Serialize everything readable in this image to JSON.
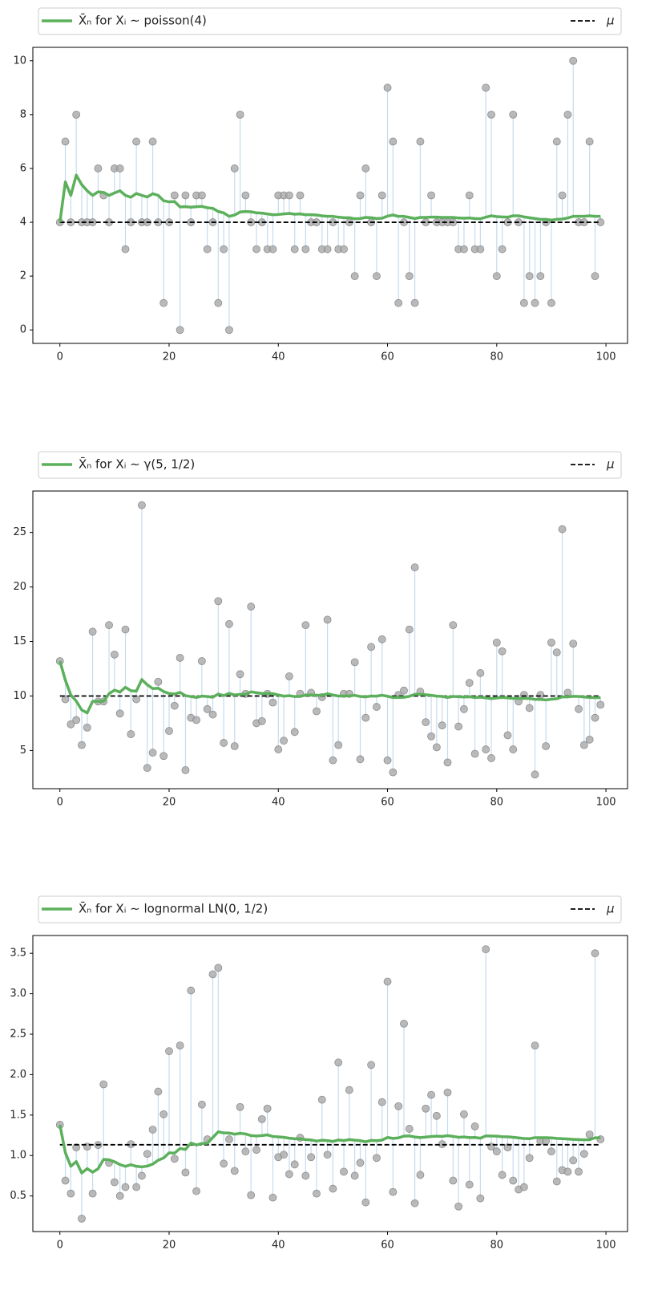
{
  "chart_data": [
    {
      "type": "stem",
      "x": [
        0,
        1,
        2,
        3,
        4,
        5,
        6,
        7,
        8,
        9,
        10,
        11,
        12,
        13,
        14,
        15,
        16,
        17,
        18,
        19,
        20,
        21,
        22,
        23,
        24,
        25,
        26,
        27,
        28,
        29,
        30,
        31,
        32,
        33,
        34,
        35,
        36,
        37,
        38,
        39,
        40,
        41,
        42,
        43,
        44,
        45,
        46,
        47,
        48,
        49,
        50,
        51,
        52,
        53,
        54,
        55,
        56,
        57,
        58,
        59,
        60,
        61,
        62,
        63,
        64,
        65,
        66,
        67,
        68,
        69,
        70,
        71,
        72,
        73,
        74,
        75,
        76,
        77,
        78,
        79,
        80,
        81,
        82,
        83,
        84,
        85,
        86,
        87,
        88,
        89,
        90,
        91,
        92,
        93,
        94,
        95,
        96,
        97,
        98,
        99
      ],
      "xlim": [
        -4.95,
        103.95
      ],
      "ylim": [
        -0.5,
        10.5
      ],
      "xticks": [
        0,
        20,
        40,
        60,
        80,
        100
      ],
      "yticks": [
        0,
        2,
        4,
        6,
        8,
        10
      ],
      "samples": {
        "color": "#a9a9a9",
        "stem_color": "#c6dbef",
        "values": [
          4,
          7,
          4,
          8,
          4,
          4,
          4,
          6,
          5,
          4,
          6,
          6,
          3,
          4,
          7,
          4,
          4,
          7,
          4,
          1,
          4,
          5,
          0,
          5,
          4,
          5,
          5,
          3,
          4,
          1,
          3,
          0,
          6,
          8,
          5,
          4,
          3,
          4,
          3,
          3,
          5,
          5,
          5,
          3,
          5,
          3,
          4,
          4,
          3,
          3,
          4,
          3,
          3,
          4,
          2,
          5,
          6,
          4,
          2,
          5,
          9,
          7,
          1,
          4,
          2,
          1,
          7,
          4,
          5,
          4,
          4,
          4,
          4,
          3,
          3,
          5,
          3,
          3,
          9,
          8,
          2,
          3,
          4,
          8,
          4,
          1,
          2,
          1,
          2,
          4,
          1,
          7,
          5,
          8,
          10,
          4,
          4,
          7,
          2,
          4
        ]
      },
      "series": [
        {
          "name": "X̄ₙ for Xᵢ ∼ poisson(4)",
          "color": "#5cb05c",
          "values": [
            4.0,
            5.5,
            5.0,
            5.75,
            5.4,
            5.17,
            5.0,
            5.13,
            5.11,
            5.0,
            5.09,
            5.17,
            5.0,
            4.93,
            5.07,
            5.0,
            4.94,
            5.06,
            5.0,
            4.8,
            4.76,
            4.77,
            4.57,
            4.58,
            4.56,
            4.58,
            4.59,
            4.54,
            4.52,
            4.4,
            4.35,
            4.22,
            4.27,
            4.38,
            4.4,
            4.39,
            4.35,
            4.34,
            4.31,
            4.28,
            4.29,
            4.31,
            4.33,
            4.3,
            4.31,
            4.28,
            4.28,
            4.27,
            4.24,
            4.22,
            4.22,
            4.19,
            4.17,
            4.17,
            4.13,
            4.14,
            4.18,
            4.17,
            4.14,
            4.15,
            4.23,
            4.27,
            4.22,
            4.22,
            4.18,
            4.14,
            4.18,
            4.18,
            4.19,
            4.19,
            4.18,
            4.18,
            4.18,
            4.16,
            4.15,
            4.16,
            4.14,
            4.13,
            4.19,
            4.24,
            4.21,
            4.2,
            4.19,
            4.24,
            4.24,
            4.2,
            4.17,
            4.14,
            4.11,
            4.11,
            4.08,
            4.11,
            4.12,
            4.16,
            4.22,
            4.22,
            4.22,
            4.24,
            4.22,
            4.22
          ]
        }
      ],
      "mu": {
        "name": "μ",
        "value": 4,
        "color": "#000000"
      }
    },
    {
      "type": "stem",
      "x": [
        0,
        1,
        2,
        3,
        4,
        5,
        6,
        7,
        8,
        9,
        10,
        11,
        12,
        13,
        14,
        15,
        16,
        17,
        18,
        19,
        20,
        21,
        22,
        23,
        24,
        25,
        26,
        27,
        28,
        29,
        30,
        31,
        32,
        33,
        34,
        35,
        36,
        37,
        38,
        39,
        40,
        41,
        42,
        43,
        44,
        45,
        46,
        47,
        48,
        49,
        50,
        51,
        52,
        53,
        54,
        55,
        56,
        57,
        58,
        59,
        60,
        61,
        62,
        63,
        64,
        65,
        66,
        67,
        68,
        69,
        70,
        71,
        72,
        73,
        74,
        75,
        76,
        77,
        78,
        79,
        80,
        81,
        82,
        83,
        84,
        85,
        86,
        87,
        88,
        89,
        90,
        91,
        92,
        93,
        94,
        95,
        96,
        97,
        98,
        99
      ],
      "xlim": [
        -4.95,
        103.95
      ],
      "ylim": [
        1.5,
        28.8
      ],
      "xticks": [
        0,
        20,
        40,
        60,
        80,
        100
      ],
      "yticks": [
        5,
        10,
        15,
        20,
        25
      ],
      "samples": {
        "color": "#a9a9a9",
        "stem_color": "#c6dbef",
        "values": [
          13.2,
          9.7,
          7.4,
          7.8,
          5.5,
          7.1,
          15.9,
          9.5,
          9.5,
          16.5,
          13.8,
          8.4,
          16.1,
          6.5,
          9.7,
          27.5,
          3.4,
          4.8,
          11.3,
          4.5,
          6.8,
          9.1,
          13.5,
          3.2,
          8.0,
          7.8,
          13.2,
          8.8,
          8.3,
          18.7,
          5.7,
          16.6,
          5.4,
          12.0,
          10.2,
          18.2,
          7.5,
          7.7,
          10.2,
          9.4,
          5.1,
          5.9,
          11.8,
          6.7,
          10.2,
          16.5,
          10.3,
          8.6,
          9.9,
          17.0,
          4.1,
          5.5,
          10.2,
          10.2,
          13.1,
          4.2,
          8.0,
          14.5,
          9.0,
          15.2,
          4.1,
          3.0,
          10.1,
          10.5,
          16.1,
          21.8,
          10.4,
          7.6,
          6.3,
          5.3,
          7.3,
          3.9,
          16.5,
          7.2,
          8.8,
          11.2,
          4.7,
          12.1,
          5.1,
          4.3,
          14.9,
          14.1,
          6.4,
          5.1,
          9.5,
          10.1,
          8.9,
          2.8,
          10.1,
          5.4,
          14.9,
          14.0,
          25.3,
          10.3,
          14.8,
          8.8,
          5.5,
          6.0,
          8.0,
          9.2
        ]
      },
      "series": [
        {
          "name": "X̄ₙ for Xᵢ ∼ γ(5, 1/2)",
          "color": "#5cb05c",
          "values": [
            13.2,
            11.45,
            10.1,
            9.53,
            8.72,
            8.45,
            9.51,
            9.51,
            9.51,
            10.21,
            10.54,
            10.36,
            10.8,
            10.49,
            10.44,
            11.51,
            11.03,
            10.68,
            10.72,
            10.41,
            10.23,
            10.18,
            10.33,
            10.03,
            9.95,
            9.87,
            9.99,
            9.95,
            9.89,
            10.18,
            10.04,
            10.24,
            10.1,
            10.15,
            10.15,
            10.38,
            10.3,
            10.23,
            10.23,
            10.21,
            10.09,
            9.99,
            10.03,
            9.95,
            9.96,
            10.1,
            10.1,
            10.07,
            10.07,
            10.21,
            10.09,
            10.0,
            10.0,
            10.01,
            10.06,
            9.96,
            9.92,
            10.0,
            9.99,
            10.07,
            9.98,
            9.86,
            9.87,
            9.88,
            9.97,
            10.15,
            10.16,
            10.12,
            10.06,
            9.99,
            9.96,
            9.87,
            9.96,
            9.93,
            9.91,
            9.93,
            9.86,
            9.89,
            9.83,
            9.76,
            9.82,
            9.87,
            9.83,
            9.78,
            9.78,
            9.78,
            9.77,
            9.69,
            9.69,
            9.64,
            9.7,
            9.75,
            9.92,
            9.92,
            9.97,
            9.96,
            9.91,
            9.87,
            9.85,
            9.85
          ]
        }
      ],
      "mu": {
        "name": "μ",
        "value": 10,
        "color": "#000000"
      }
    },
    {
      "type": "stem",
      "x": [
        0,
        1,
        2,
        3,
        4,
        5,
        6,
        7,
        8,
        9,
        10,
        11,
        12,
        13,
        14,
        15,
        16,
        17,
        18,
        19,
        20,
        21,
        22,
        23,
        24,
        25,
        26,
        27,
        28,
        29,
        30,
        31,
        32,
        33,
        34,
        35,
        36,
        37,
        38,
        39,
        40,
        41,
        42,
        43,
        44,
        45,
        46,
        47,
        48,
        49,
        50,
        51,
        52,
        53,
        54,
        55,
        56,
        57,
        58,
        59,
        60,
        61,
        62,
        63,
        64,
        65,
        66,
        67,
        68,
        69,
        70,
        71,
        72,
        73,
        74,
        75,
        76,
        77,
        78,
        79,
        80,
        81,
        82,
        83,
        84,
        85,
        86,
        87,
        88,
        89,
        90,
        91,
        92,
        93,
        94,
        95,
        96,
        97,
        98,
        99
      ],
      "xlim": [
        -4.95,
        103.95
      ],
      "ylim": [
        0.06,
        3.72
      ],
      "xticks": [
        0,
        20,
        40,
        60,
        80,
        100
      ],
      "yticks": [
        0.5,
        {
          "value": 1,
          "label": "1.0"
        },
        1.5,
        {
          "value": 2,
          "label": "2.0"
        },
        2.5,
        {
          "value": 3,
          "label": "3.0"
        },
        3.5
      ],
      "samples": {
        "color": "#a9a9a9",
        "stem_color": "#c6dbef",
        "values": [
          1.38,
          0.69,
          0.53,
          1.1,
          0.22,
          1.11,
          0.53,
          1.13,
          1.88,
          0.91,
          0.67,
          0.5,
          0.61,
          1.14,
          0.61,
          0.75,
          1.02,
          1.32,
          1.79,
          1.51,
          2.29,
          0.96,
          2.36,
          0.79,
          3.04,
          0.56,
          1.63,
          1.2,
          3.24,
          3.32,
          0.9,
          1.2,
          0.81,
          1.6,
          1.05,
          0.51,
          1.07,
          1.45,
          1.58,
          0.48,
          0.98,
          1.01,
          0.77,
          0.89,
          1.22,
          0.75,
          0.98,
          0.53,
          1.69,
          1.01,
          0.59,
          2.15,
          0.8,
          1.81,
          0.75,
          0.91,
          0.42,
          2.12,
          0.97,
          1.66,
          3.15,
          0.55,
          1.61,
          2.63,
          1.33,
          0.41,
          0.76,
          1.58,
          1.75,
          1.49,
          1.14,
          1.78,
          0.69,
          0.37,
          1.51,
          0.64,
          1.36,
          0.47,
          3.55,
          1.11,
          1.05,
          0.76,
          1.1,
          0.69,
          0.58,
          0.61,
          0.97,
          2.36,
          1.18,
          1.18,
          1.05,
          0.68,
          0.82,
          0.8,
          0.94,
          0.8,
          1.02,
          1.26,
          3.5,
          1.2
        ]
      },
      "series": [
        {
          "name": "X̄ₙ for Xᵢ ∼ lognormal LN(0, 1/2)",
          "color": "#5cb05c",
          "values": [
            1.38,
            1.035,
            0.867,
            0.925,
            0.784,
            0.838,
            0.794,
            0.836,
            0.952,
            0.948,
            0.923,
            0.888,
            0.866,
            0.886,
            0.867,
            0.86,
            0.869,
            0.894,
            0.942,
            0.97,
            1.033,
            1.03,
            1.087,
            1.075,
            1.154,
            1.131,
            1.149,
            1.151,
            1.223,
            1.293,
            1.28,
            1.278,
            1.264,
            1.274,
            1.267,
            1.246,
            1.241,
            1.247,
            1.255,
            1.236,
            1.23,
            1.225,
            1.214,
            1.207,
            1.207,
            1.197,
            1.192,
            1.179,
            1.189,
            1.185,
            1.174,
            1.192,
            1.185,
            1.197,
            1.189,
            1.184,
            1.17,
            1.187,
            1.183,
            1.191,
            1.223,
            1.212,
            1.218,
            1.24,
            1.242,
            1.229,
            1.222,
            1.228,
            1.235,
            1.239,
            1.237,
            1.245,
            1.237,
            1.226,
            1.229,
            1.222,
            1.223,
            1.214,
            1.243,
            1.242,
            1.239,
            1.233,
            1.232,
            1.225,
            1.218,
            1.211,
            1.208,
            1.221,
            1.221,
            1.22,
            1.218,
            1.212,
            1.208,
            1.204,
            1.2,
            1.197,
            1.195,
            1.196,
            1.219,
            1.219
          ]
        }
      ],
      "mu": {
        "name": "μ",
        "value": 1.133,
        "color": "#000000"
      }
    }
  ]
}
